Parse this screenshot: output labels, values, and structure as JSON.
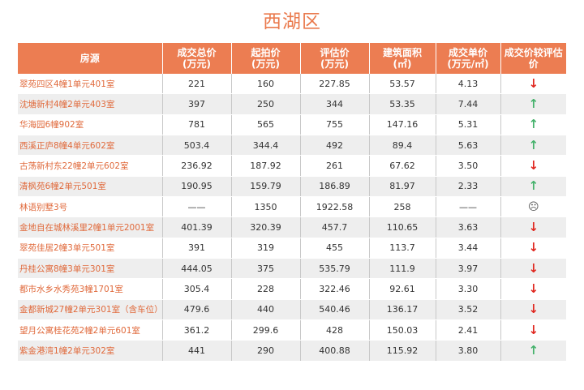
{
  "title": "西湖区",
  "headers": {
    "name": "房源",
    "total_price": [
      "成交总价",
      "(万元)"
    ],
    "start_price": [
      "起拍价",
      "(万元)"
    ],
    "assessed_price": [
      "评估价",
      "(万元)"
    ],
    "area": [
      "建筑面积",
      "(㎡)"
    ],
    "unit_price": [
      "成交单价",
      "(万元/㎡)"
    ],
    "comparison": "成交价较评估价"
  },
  "rows": [
    {
      "name": "翠苑四区4幢1单元401室",
      "total": "221",
      "start": "160",
      "assessed": "227.85",
      "area": "53.57",
      "unit": "4.13",
      "trend": "down"
    },
    {
      "name": "沈塘新村4幢2单元403室",
      "total": "397",
      "start": "250",
      "assessed": "344",
      "area": "53.35",
      "unit": "7.44",
      "trend": "up"
    },
    {
      "name": "华海园6幢902室",
      "total": "781",
      "start": "565",
      "assessed": "755",
      "area": "147.16",
      "unit": "5.31",
      "trend": "up"
    },
    {
      "name": "西溪正庐8幢4单元602室",
      "total": "503.4",
      "start": "344.4",
      "assessed": "492",
      "area": "89.4",
      "unit": "5.63",
      "trend": "up"
    },
    {
      "name": "古荡新村东22幢2单元602室",
      "total": "236.92",
      "start": "187.92",
      "assessed": "261",
      "area": "67.62",
      "unit": "3.50",
      "trend": "down"
    },
    {
      "name": "清枫苑6幢2单元501室",
      "total": "190.95",
      "start": "159.79",
      "assessed": "186.89",
      "area": "81.97",
      "unit": "2.33",
      "trend": "up"
    },
    {
      "name": "林语别墅3号",
      "total": "——",
      "start": "1350",
      "assessed": "1922.58",
      "area": "258",
      "unit": "——",
      "trend": "neutral"
    },
    {
      "name": "金地自在城林溪里2幢1单元2001室",
      "total": "401.39",
      "start": "320.39",
      "assessed": "457.7",
      "area": "110.65",
      "unit": "3.63",
      "trend": "down"
    },
    {
      "name": "翠苑佳居2幢3单元501室",
      "total": "391",
      "start": "319",
      "assessed": "455",
      "area": "113.7",
      "unit": "3.44",
      "trend": "down"
    },
    {
      "name": "丹桂公寓8幢3单元301室",
      "total": "444.05",
      "start": "375",
      "assessed": "535.79",
      "area": "111.9",
      "unit": "3.97",
      "trend": "down"
    },
    {
      "name": "都市水乡水秀苑3幢1701室",
      "total": "305.4",
      "start": "228",
      "assessed": "322.46",
      "area": "92.61",
      "unit": "3.30",
      "trend": "down"
    },
    {
      "name": "金都新城27幢2单元301室（含车位）",
      "total": "479.6",
      "start": "440",
      "assessed": "540.46",
      "area": "136.17",
      "unit": "3.52",
      "trend": "down"
    },
    {
      "name": "望月公寓桂花苑2幢2单元601室",
      "total": "361.2",
      "start": "299.6",
      "assessed": "428",
      "area": "150.03",
      "unit": "2.41",
      "trend": "down"
    },
    {
      "name": "紫金港湾1幢2单元302室",
      "total": "441",
      "start": "290",
      "assessed": "400.88",
      "area": "115.92",
      "unit": "3.80",
      "trend": "up"
    }
  ],
  "trend_symbols": {
    "up": "↑",
    "down": "↓",
    "neutral": "☹"
  },
  "colors": {
    "header_bg": "#ec7d52",
    "title": "#ea7a4d",
    "up": "#44b16b",
    "down": "#e0271f",
    "name_text": "#e06a3c"
  }
}
